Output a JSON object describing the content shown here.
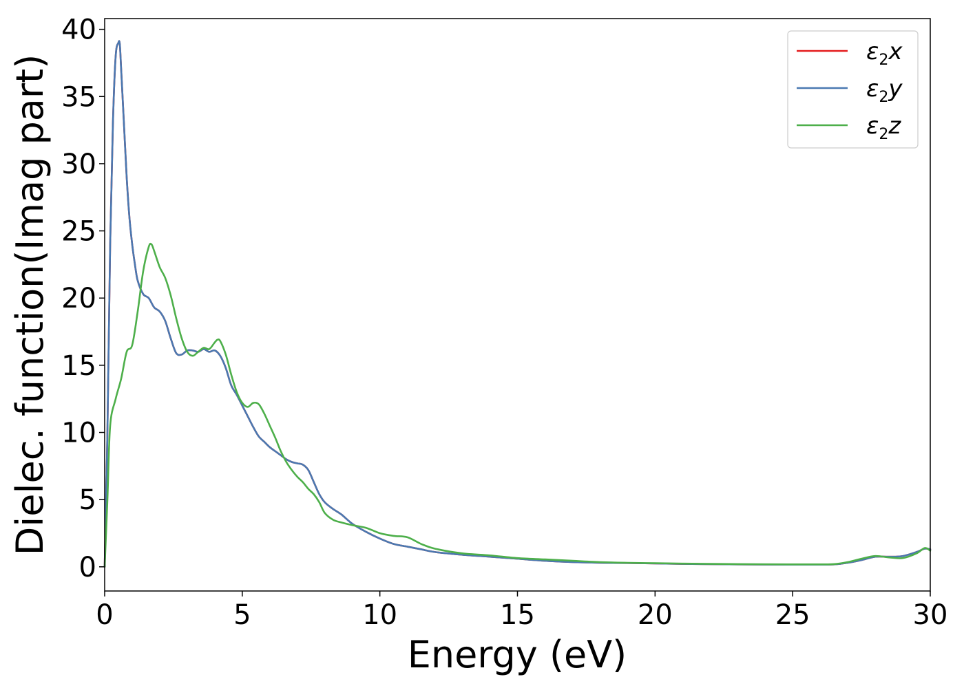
{
  "chart_data": {
    "type": "line",
    "title": "",
    "xlabel": "Energy (eV)",
    "ylabel": "Dielec. function(Imag part)",
    "xlim": [
      0,
      30
    ],
    "ylim": [
      -1.8,
      40.8
    ],
    "xticks": [
      0,
      5,
      10,
      15,
      20,
      25,
      30
    ],
    "xtick_labels": [
      "0",
      "5",
      "10",
      "15",
      "20",
      "25",
      "30"
    ],
    "yticks": [
      0,
      5,
      10,
      15,
      20,
      25,
      30,
      35,
      40
    ],
    "ytick_labels": [
      "0",
      "5",
      "10",
      "15",
      "20",
      "25",
      "30",
      "35",
      "40"
    ],
    "grid": false,
    "legend_position": "top-right",
    "series": [
      {
        "name": "ε2x",
        "legend_base": "ε",
        "legend_sub": "2",
        "legend_var": "x",
        "color": "#e41a1c",
        "x": [
          0,
          0.1,
          0.2,
          0.3,
          0.4,
          0.5,
          0.55,
          0.6,
          0.7,
          0.8,
          0.9,
          1.0,
          1.1,
          1.2,
          1.4,
          1.6,
          1.8,
          2.0,
          2.2,
          2.4,
          2.6,
          2.8,
          3.0,
          3.2,
          3.4,
          3.6,
          3.8,
          4.0,
          4.2,
          4.4,
          4.6,
          4.8,
          5.0,
          5.2,
          5.4,
          5.6,
          5.8,
          6.0,
          6.2,
          6.4,
          6.6,
          6.8,
          7.0,
          7.2,
          7.4,
          7.6,
          7.8,
          8.0,
          8.3,
          8.6,
          9.0,
          9.5,
          10.0,
          10.5,
          11.0,
          11.5,
          12.0,
          13.0,
          14.0,
          15.0,
          16.0,
          17.0,
          18.0,
          19.0,
          20.0,
          21.0,
          22.0,
          23.0,
          24.0,
          25.0,
          26.0,
          26.5,
          27.0,
          27.5,
          28.0,
          28.5,
          29.0,
          29.5,
          29.8,
          30.0
        ],
        "values": [
          0,
          10,
          24,
          33,
          38,
          39,
          38.9,
          37,
          33,
          29,
          26,
          24,
          22.5,
          21.3,
          20.3,
          20,
          19.3,
          19,
          18.3,
          17,
          15.9,
          15.8,
          16.1,
          16.1,
          16.0,
          16.2,
          16.0,
          16.1,
          15.7,
          14.8,
          13.5,
          12.8,
          12.0,
          11.2,
          10.4,
          9.7,
          9.3,
          8.9,
          8.6,
          8.3,
          8.0,
          7.8,
          7.7,
          7.6,
          7.2,
          6.3,
          5.4,
          4.8,
          4.3,
          3.9,
          3.2,
          2.6,
          2.1,
          1.7,
          1.5,
          1.3,
          1.1,
          0.9,
          0.75,
          0.6,
          0.45,
          0.35,
          0.3,
          0.28,
          0.25,
          0.22,
          0.2,
          0.18,
          0.17,
          0.16,
          0.16,
          0.18,
          0.3,
          0.5,
          0.75,
          0.75,
          0.8,
          1.1,
          1.35,
          1.3
        ]
      },
      {
        "name": "ε2y",
        "legend_base": "ε",
        "legend_sub": "2",
        "legend_var": "y",
        "color": "#4a79b1",
        "x": [
          0,
          0.1,
          0.2,
          0.3,
          0.4,
          0.5,
          0.55,
          0.6,
          0.7,
          0.8,
          0.9,
          1.0,
          1.1,
          1.2,
          1.4,
          1.6,
          1.8,
          2.0,
          2.2,
          2.4,
          2.6,
          2.8,
          3.0,
          3.2,
          3.4,
          3.6,
          3.8,
          4.0,
          4.2,
          4.4,
          4.6,
          4.8,
          5.0,
          5.2,
          5.4,
          5.6,
          5.8,
          6.0,
          6.2,
          6.4,
          6.6,
          6.8,
          7.0,
          7.2,
          7.4,
          7.6,
          7.8,
          8.0,
          8.3,
          8.6,
          9.0,
          9.5,
          10.0,
          10.5,
          11.0,
          11.5,
          12.0,
          13.0,
          14.0,
          15.0,
          16.0,
          17.0,
          18.0,
          19.0,
          20.0,
          21.0,
          22.0,
          23.0,
          24.0,
          25.0,
          26.0,
          26.5,
          27.0,
          27.5,
          28.0,
          28.5,
          29.0,
          29.5,
          29.8,
          30.0
        ],
        "values": [
          0,
          10,
          24,
          33,
          38,
          39,
          38.9,
          37,
          33,
          29,
          26,
          24,
          22.5,
          21.3,
          20.3,
          20,
          19.3,
          19,
          18.3,
          17,
          15.9,
          15.8,
          16.1,
          16.1,
          16.0,
          16.2,
          16.0,
          16.1,
          15.7,
          14.8,
          13.5,
          12.8,
          12.0,
          11.2,
          10.4,
          9.7,
          9.3,
          8.9,
          8.6,
          8.3,
          8.0,
          7.8,
          7.7,
          7.6,
          7.2,
          6.3,
          5.4,
          4.8,
          4.3,
          3.9,
          3.2,
          2.6,
          2.1,
          1.7,
          1.5,
          1.3,
          1.1,
          0.9,
          0.75,
          0.6,
          0.45,
          0.35,
          0.3,
          0.28,
          0.25,
          0.22,
          0.2,
          0.18,
          0.17,
          0.16,
          0.16,
          0.18,
          0.3,
          0.5,
          0.75,
          0.75,
          0.8,
          1.1,
          1.35,
          1.3
        ]
      },
      {
        "name": "ε2z",
        "legend_base": "ε",
        "legend_sub": "2",
        "legend_var": "z",
        "color": "#4daf4a",
        "x": [
          0,
          0.1,
          0.2,
          0.4,
          0.6,
          0.8,
          1.0,
          1.2,
          1.4,
          1.6,
          1.7,
          1.8,
          2.0,
          2.2,
          2.4,
          2.6,
          2.8,
          3.0,
          3.2,
          3.4,
          3.6,
          3.8,
          4.0,
          4.1,
          4.2,
          4.4,
          4.6,
          4.8,
          5.0,
          5.2,
          5.4,
          5.6,
          5.8,
          6.0,
          6.2,
          6.4,
          6.6,
          6.8,
          7.0,
          7.2,
          7.4,
          7.6,
          7.8,
          8.0,
          8.3,
          8.6,
          9.0,
          9.5,
          10.0,
          10.5,
          11.0,
          11.5,
          12.0,
          13.0,
          14.0,
          15.0,
          16.0,
          17.0,
          18.0,
          19.0,
          20.0,
          21.0,
          22.0,
          23.0,
          24.0,
          25.0,
          26.0,
          26.5,
          27.0,
          27.5,
          28.0,
          28.5,
          29.0,
          29.5,
          29.8,
          30.0
        ],
        "values": [
          0,
          5,
          10.5,
          12.5,
          14,
          16,
          16.5,
          19,
          22,
          23.8,
          24.0,
          23.5,
          22.3,
          21.5,
          20.2,
          18.5,
          17.0,
          16.0,
          15.7,
          16.0,
          16.3,
          16.2,
          16.7,
          16.9,
          16.8,
          15.8,
          14.3,
          13.0,
          12.2,
          11.9,
          12.2,
          12.1,
          11.4,
          10.5,
          9.6,
          8.6,
          7.8,
          7.2,
          6.7,
          6.3,
          5.8,
          5.4,
          4.8,
          4.0,
          3.5,
          3.3,
          3.1,
          2.9,
          2.5,
          2.3,
          2.2,
          1.7,
          1.35,
          1.0,
          0.85,
          0.65,
          0.55,
          0.45,
          0.35,
          0.3,
          0.27,
          0.24,
          0.22,
          0.2,
          0.19,
          0.18,
          0.18,
          0.2,
          0.35,
          0.6,
          0.8,
          0.7,
          0.65,
          1.0,
          1.4,
          1.2
        ]
      }
    ]
  }
}
